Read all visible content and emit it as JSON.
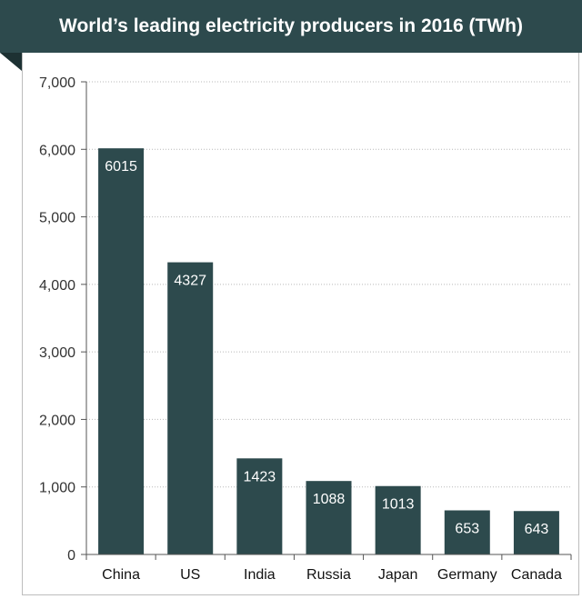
{
  "chart_data": {
    "type": "bar",
    "title": "World’s leading electricity producers in 2016 (TWh)",
    "categories": [
      "China",
      "US",
      "India",
      "Russia",
      "Japan",
      "Germany",
      "Canada"
    ],
    "values": [
      6015,
      4327,
      1423,
      1088,
      1013,
      653,
      643
    ],
    "data_labels": [
      "6015",
      "4327",
      "1423",
      "1088",
      "1013",
      "653",
      "643"
    ],
    "y_ticks": [
      0,
      1000,
      2000,
      3000,
      4000,
      5000,
      6000,
      7000
    ],
    "y_tick_labels": [
      "0",
      "1,000",
      "2,000",
      "3,000",
      "4,000",
      "5,000",
      "6,000",
      "7,000"
    ],
    "ylim": [
      0,
      7000
    ],
    "xlabel": "",
    "ylabel": "",
    "grid": "horizontal dotted",
    "colors": {
      "bar": "#2d4a4d",
      "banner": "#2d4a4d",
      "label": "#ffffff",
      "grid": "#b9b9b9"
    }
  }
}
